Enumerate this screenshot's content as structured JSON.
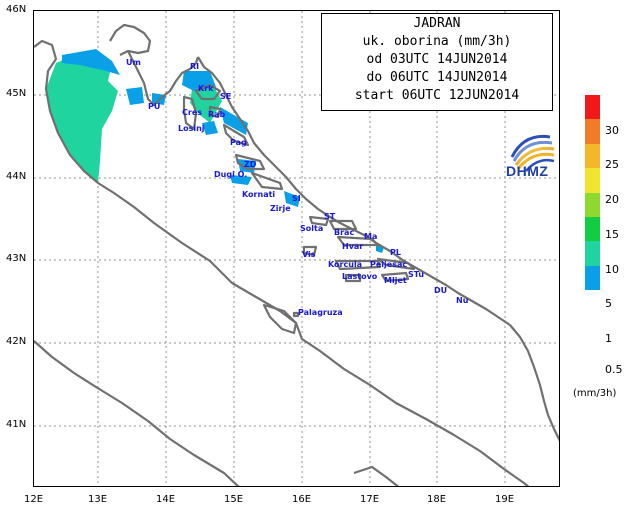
{
  "title_lines": [
    "JADRAN",
    "uk. oborina (mm/3h)",
    "od 03UTC 14JUN2014",
    "do 06UTC 14JUN2014",
    "start 06UTC 12JUN2014"
  ],
  "logo_text": "DHMZ",
  "lat_labels": [
    "46N",
    "45N",
    "44N",
    "43N",
    "42N",
    "41N"
  ],
  "lon_labels": [
    "12E",
    "13E",
    "14E",
    "15E",
    "16E",
    "17E",
    "18E",
    "19E"
  ],
  "legend": {
    "unit": "(mm/3h)",
    "ticks": [
      "0.5",
      "1",
      "5",
      "10",
      "15",
      "20",
      "25",
      "30"
    ],
    "colors": [
      "#09a0e8",
      "#20d4a0",
      "#12cc44",
      "#8fd832",
      "#f0e62e",
      "#f2b82a",
      "#f07c2a",
      "#f01818"
    ]
  },
  "places": [
    "Um",
    "RI",
    "Krk",
    "SE",
    "PU",
    "Cres",
    "Rab",
    "Losinj",
    "Pag",
    "ZD",
    "Dugi O.",
    "Kornati",
    "SI",
    "Zirje",
    "ST",
    "Solta",
    "Brac",
    "Ma",
    "Hvar",
    "PL",
    "Vis",
    "Korcula",
    "Peljesac",
    "Lastovo",
    "Mljet",
    "STu",
    "DU",
    "Nu",
    "Palagruza"
  ],
  "colors": {
    "land_outline": "#707070",
    "precip_light": "#20d4a0",
    "precip_trace": "#09a0e8",
    "grid": "#909090",
    "place_label": "#1818d8"
  }
}
